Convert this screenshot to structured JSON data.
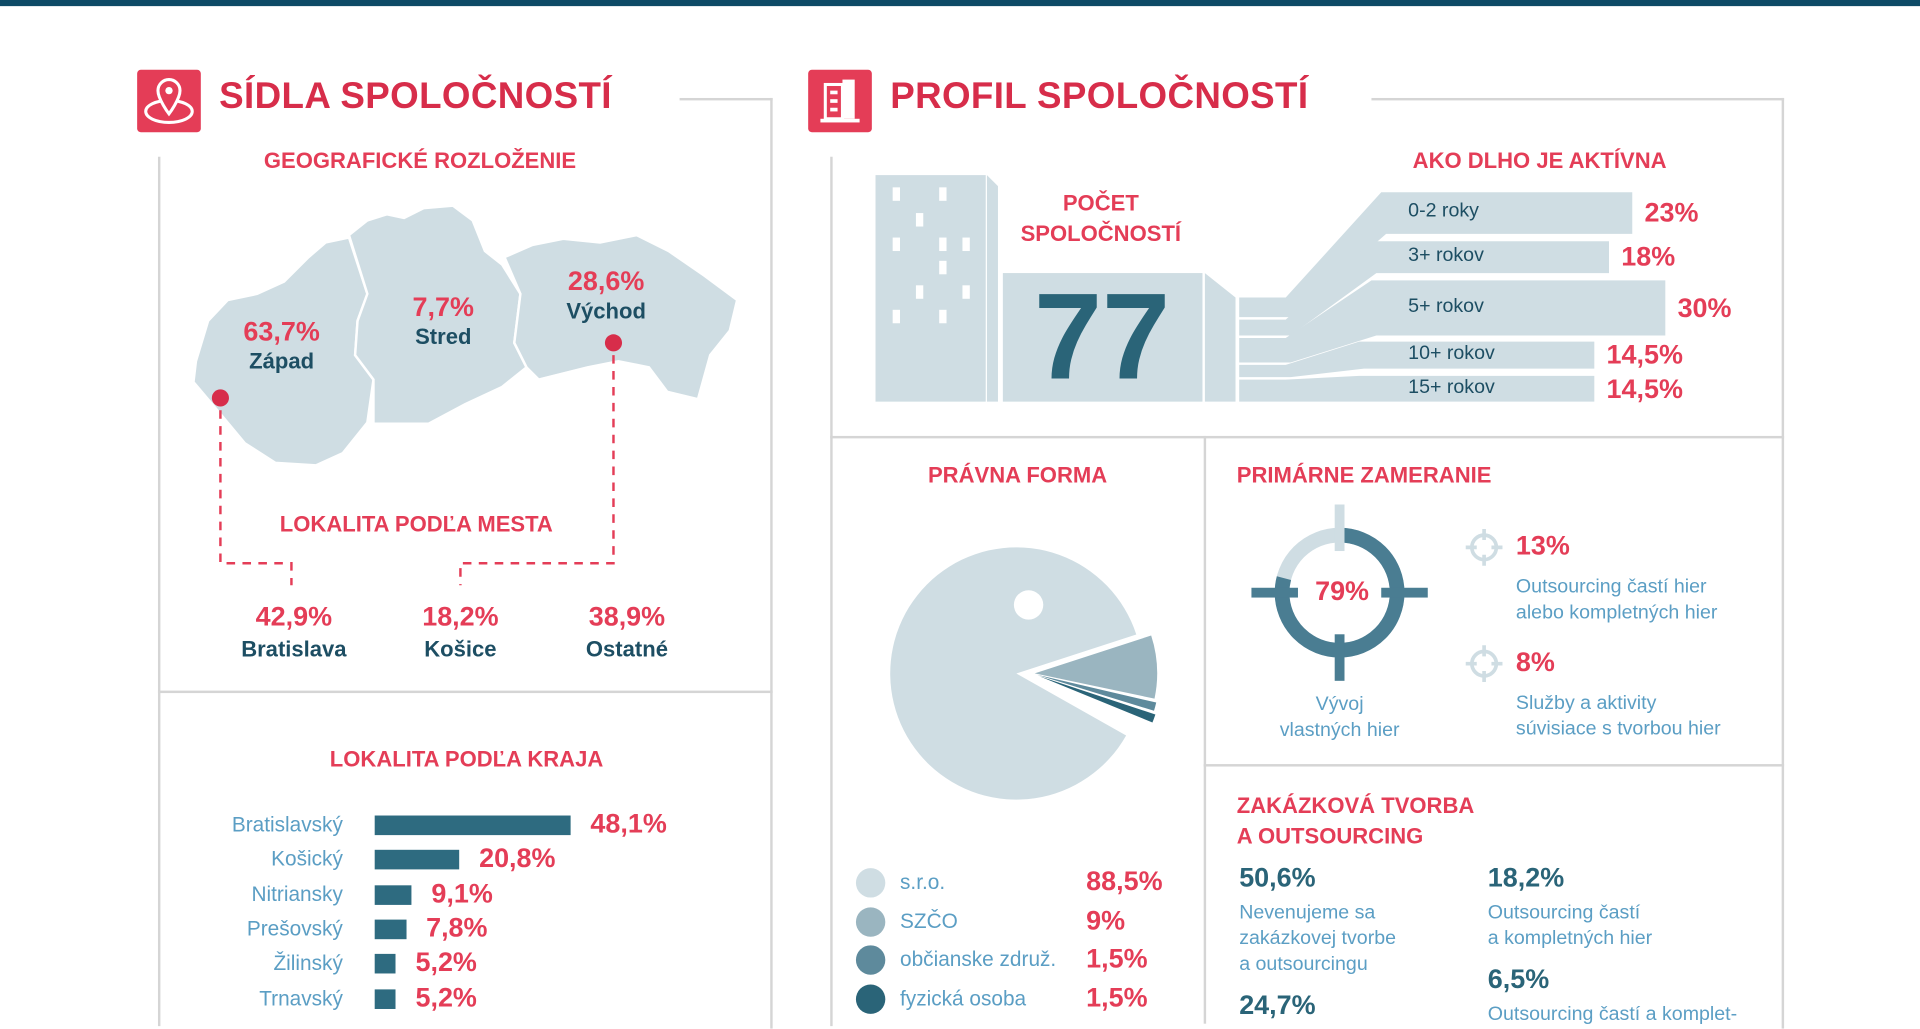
{
  "colors": {
    "accent": "#e43d57",
    "dark": "#1d4e63",
    "bar": "#2e6b80",
    "light": "#cfdde3",
    "topbar": "#0d4a66"
  },
  "left": {
    "title": "SÍDLA SPOLOČNOSTÍ",
    "icon": "map-pin-icon",
    "geo_title": "GEOGRAFICKÉ ROZLOŽENIE",
    "regions": [
      {
        "pct": "63,7%",
        "name": "Západ"
      },
      {
        "pct": "7,7%",
        "name": "Stred"
      },
      {
        "pct": "28,6%",
        "name": "Východ"
      }
    ],
    "city_title": "LOKALITA PODĽA MESTA",
    "cities": [
      {
        "pct": "42,9%",
        "name": "Bratislava"
      },
      {
        "pct": "18,2%",
        "name": "Košice"
      },
      {
        "pct": "38,9%",
        "name": "Ostatné"
      }
    ],
    "kraj_title": "LOKALITA PODĽA KRAJA",
    "kraje": [
      {
        "name": "Bratislavský",
        "value": 48.1,
        "label": "48,1%"
      },
      {
        "name": "Košický",
        "value": 20.8,
        "label": "20,8%"
      },
      {
        "name": "Nitriansky",
        "value": 9.1,
        "label": "9,1%"
      },
      {
        "name": "Prešovský",
        "value": 7.8,
        "label": "7,8%"
      },
      {
        "name": "Žilinský",
        "value": 5.2,
        "label": "5,2%"
      },
      {
        "name": "Trnavský",
        "value": 5.2,
        "label": "5,2%"
      }
    ]
  },
  "right": {
    "title": "PROFIL SPOLOČNOSTÍ",
    "icon": "building-icon",
    "count_label_1": "POČET",
    "count_label_2": "SPOLOČNOSTÍ",
    "count": "77",
    "age_title": "AKO DLHO JE AKTÍVNA",
    "ages": [
      {
        "label": "0-2 roky",
        "pct": "23%",
        "value": 23
      },
      {
        "label": "3+ rokov",
        "pct": "18%",
        "value": 18
      },
      {
        "label": "5+ rokov",
        "pct": "30%",
        "value": 30
      },
      {
        "label": "10+ rokov",
        "pct": "14,5%",
        "value": 14.5
      },
      {
        "label": "15+ rokov",
        "pct": "14,5%",
        "value": 14.5
      }
    ],
    "legal_title": "PRÁVNA FORMA",
    "legal": [
      {
        "label": "s.r.o.",
        "pct": "88,5%",
        "value": 88.5,
        "color": "#cfdde3"
      },
      {
        "label": "SZČO",
        "pct": "9%",
        "value": 9,
        "color": "#9ab5c0"
      },
      {
        "label": "občianske združ.",
        "pct": "1,5%",
        "value": 1.5,
        "color": "#5e8a9c"
      },
      {
        "label": "fyzická osoba",
        "pct": "1,5%",
        "value": 1.5,
        "color": "#2a6478"
      }
    ],
    "focus_title": "PRIMÁRNE ZAMERANIE",
    "focus_main": {
      "pct": "79%",
      "value": 79,
      "line1": "Vývoj",
      "line2": "vlastných hier"
    },
    "focus_items": [
      {
        "pct": "13%",
        "line1": "Outsourcing častí hier",
        "line2": "alebo kompletných hier"
      },
      {
        "pct": "8%",
        "line1": "Služby a aktivity",
        "line2": "súvisiace s tvorbou hier"
      }
    ],
    "custom_title_1": "ZAKÁZKOVÁ TVORBA",
    "custom_title_2": "A OUTSOURCING",
    "custom": [
      {
        "pct": "50,6%",
        "lines": [
          "Nevenujeme sa",
          "zakázkovej tvorbe",
          "a outsourcingu"
        ]
      },
      {
        "pct": "18,2%",
        "lines": [
          "Outsourcing častí",
          "a kompletných hier"
        ]
      },
      {
        "pct": "6,5%",
        "lines": [
          "Outsourcing častí a komplet-"
        ]
      },
      {
        "pct": "24,7%",
        "lines": []
      }
    ]
  }
}
